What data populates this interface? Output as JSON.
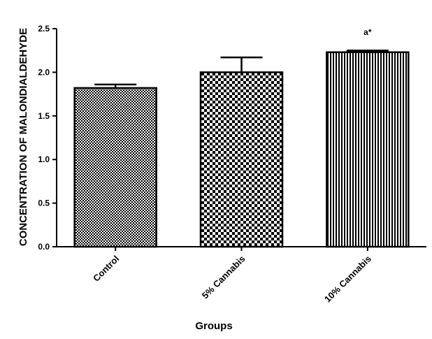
{
  "chart_data": {
    "type": "bar",
    "title": "",
    "xlabel": "Groups",
    "ylabel": "CONCENTRATION OF MALONDIALDEHYDE",
    "ylim": [
      0,
      2.5
    ],
    "yticks": [
      "0.0",
      "0.5",
      "1.0",
      "1.5",
      "2.0",
      "2.5"
    ],
    "categories": [
      "Control",
      "5% Cannabis",
      "10% Cannabis"
    ],
    "values": [
      1.82,
      2.0,
      2.23
    ],
    "errors": [
      0.04,
      0.17,
      0.02
    ],
    "patterns": [
      "fine-check",
      "coarse-check",
      "vertical-lines"
    ],
    "annotations": [
      {
        "category": "10% Cannabis",
        "text": "a*"
      }
    ],
    "grid": false,
    "legend": "none"
  }
}
